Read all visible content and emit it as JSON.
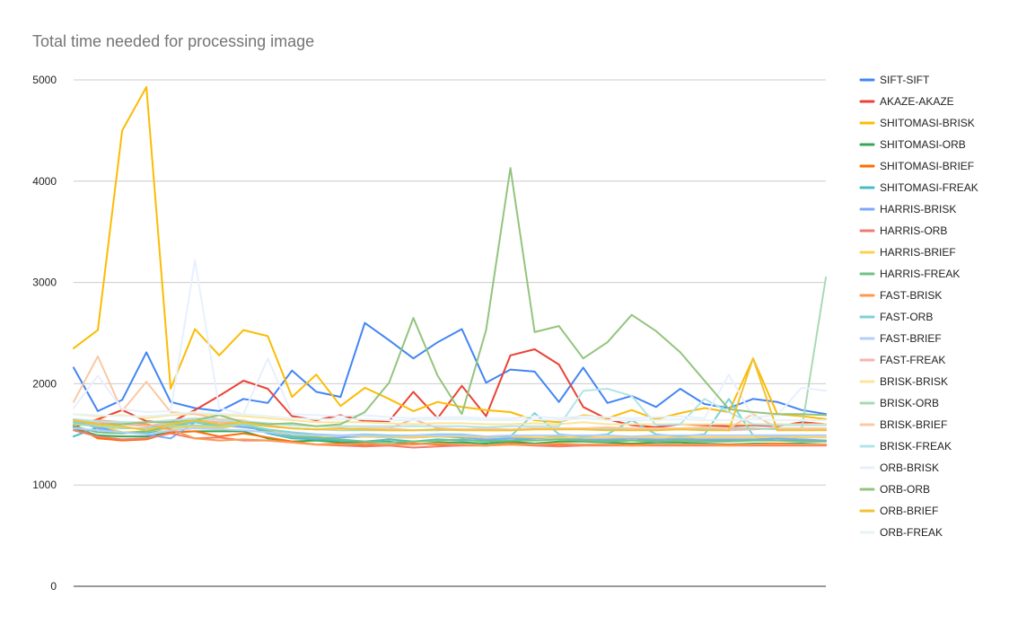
{
  "chart_data": {
    "type": "line",
    "title": "Total time needed for processing image",
    "xlabel": "",
    "ylabel": "",
    "ylim": [
      0,
      5000
    ],
    "yticks": [
      0,
      1000,
      2000,
      3000,
      4000,
      5000
    ],
    "grid": true,
    "legend": "right",
    "x": [
      1,
      2,
      3,
      4,
      5,
      6,
      7,
      8,
      9,
      10,
      11,
      12,
      13,
      14,
      15,
      16,
      17,
      18,
      19,
      20,
      21,
      22,
      23,
      24,
      25,
      26,
      27,
      28,
      29,
      30,
      31,
      32
    ],
    "series": [
      {
        "name": "SIFT-SIFT",
        "color": "#4285F4",
        "values": [
          2160,
          1730,
          1840,
          2310,
          1820,
          1760,
          1730,
          1850,
          1810,
          2130,
          1920,
          1870,
          2600,
          2430,
          2250,
          2410,
          2540,
          2010,
          2140,
          2120,
          1820,
          2160,
          1810,
          1880,
          1770,
          1950,
          1800,
          1760,
          1850,
          1820,
          1740,
          1700
        ]
      },
      {
        "name": "AKAZE-AKAZE",
        "color": "#EA4335",
        "values": [
          1570,
          1650,
          1740,
          1630,
          1620,
          1740,
          1880,
          2030,
          1950,
          1680,
          1640,
          1690,
          1630,
          1630,
          1920,
          1660,
          1980,
          1680,
          2280,
          2340,
          2190,
          1770,
          1650,
          1590,
          1570,
          1600,
          1590,
          1580,
          1590,
          1580,
          1620,
          1600
        ]
      },
      {
        "name": "SHITOMASI-BRISK",
        "color": "#FBBC04",
        "values": [
          2350,
          2530,
          4500,
          4930,
          1950,
          2540,
          2280,
          2530,
          2470,
          1870,
          2090,
          1780,
          1960,
          1850,
          1730,
          1820,
          1770,
          1740,
          1720,
          1640,
          1620,
          1690,
          1660,
          1740,
          1650,
          1710,
          1760,
          1720,
          2250,
          1700,
          1680,
          1650
        ]
      },
      {
        "name": "SHITOMASI-ORB",
        "color": "#34A853",
        "values": [
          1560,
          1490,
          1480,
          1480,
          1520,
          1530,
          1530,
          1530,
          1460,
          1430,
          1440,
          1420,
          1420,
          1430,
          1400,
          1420,
          1420,
          1410,
          1430,
          1410,
          1430,
          1430,
          1420,
          1410,
          1420,
          1420,
          1410,
          1400,
          1410,
          1410,
          1410,
          1400
        ]
      },
      {
        "name": "SHITOMASI-BRIEF",
        "color": "#FF6D01",
        "values": [
          1590,
          1460,
          1440,
          1450,
          1520,
          1530,
          1480,
          1510,
          1470,
          1430,
          1400,
          1410,
          1390,
          1400,
          1410,
          1400,
          1400,
          1390,
          1410,
          1400,
          1400,
          1400,
          1400,
          1400,
          1400,
          1400,
          1400,
          1400,
          1400,
          1410,
          1400,
          1400
        ]
      },
      {
        "name": "SHITOMASI-FREAK",
        "color": "#46BDC6",
        "values": [
          1480,
          1570,
          1520,
          1510,
          1570,
          1640,
          1560,
          1600,
          1510,
          1460,
          1450,
          1440,
          1430,
          1450,
          1430,
          1450,
          1440,
          1440,
          1440,
          1460,
          1480,
          1450,
          1440,
          1460,
          1440,
          1470,
          1440,
          1440,
          1440,
          1440,
          1440,
          1440
        ]
      },
      {
        "name": "HARRIS-BRISK",
        "color": "#7BAAF7",
        "values": [
          1640,
          1560,
          1520,
          1500,
          1460,
          1620,
          1590,
          1570,
          1540,
          1480,
          1460,
          1470,
          1480,
          1470,
          1470,
          1480,
          1470,
          1450,
          1460,
          1460,
          1470,
          1450,
          1450,
          1460,
          1450,
          1450,
          1450,
          1450,
          1450,
          1460,
          1450,
          1440
        ]
      },
      {
        "name": "HARRIS-ORB",
        "color": "#F07B72",
        "values": [
          1540,
          1480,
          1450,
          1460,
          1510,
          1460,
          1470,
          1440,
          1440,
          1420,
          1400,
          1390,
          1380,
          1390,
          1370,
          1380,
          1390,
          1390,
          1400,
          1390,
          1380,
          1390,
          1390,
          1390,
          1390,
          1390,
          1390,
          1390,
          1390,
          1390,
          1390,
          1390
        ]
      },
      {
        "name": "HARRIS-BRIEF",
        "color": "#FCD04F",
        "values": [
          1620,
          1600,
          1520,
          1530,
          1560,
          1580,
          1560,
          1600,
          1540,
          1500,
          1480,
          1490,
          1480,
          1470,
          1470,
          1480,
          1480,
          1470,
          1480,
          1470,
          1470,
          1470,
          1470,
          1470,
          1470,
          1470,
          1470,
          1470,
          1470,
          1480,
          1470,
          1470
        ]
      },
      {
        "name": "HARRIS-FREAK",
        "color": "#71C287",
        "values": [
          1580,
          1520,
          1510,
          1530,
          1580,
          1620,
          1580,
          1600,
          1530,
          1480,
          1470,
          1450,
          1430,
          1420,
          1430,
          1440,
          1450,
          1430,
          1440,
          1440,
          1450,
          1440,
          1430,
          1440,
          1430,
          1440,
          1430,
          1430,
          1440,
          1440,
          1430,
          1430
        ]
      },
      {
        "name": "FAST-BRISK",
        "color": "#FF994D",
        "values": [
          1600,
          1640,
          1620,
          1600,
          1550,
          1460,
          1440,
          1450,
          1440,
          1420,
          1400,
          1400,
          1410,
          1400,
          1400,
          1410,
          1400,
          1390,
          1400,
          1400,
          1410,
          1400,
          1400,
          1390,
          1400,
          1400,
          1400,
          1390,
          1400,
          1400,
          1400,
          1400
        ]
      },
      {
        "name": "FAST-ORB",
        "color": "#7ED1D7",
        "values": [
          1620,
          1580,
          1560,
          1560,
          1600,
          1620,
          1600,
          1590,
          1550,
          1520,
          1500,
          1490,
          1500,
          1490,
          1490,
          1500,
          1500,
          1480,
          1480,
          1710,
          1500,
          1480,
          1500,
          1640,
          1500,
          1480,
          1500,
          1850,
          1490,
          1490,
          1490,
          1490
        ]
      },
      {
        "name": "FAST-BRIEF",
        "color": "#B3CEFB",
        "values": [
          1560,
          1540,
          1520,
          1500,
          1540,
          1560,
          1550,
          1540,
          1520,
          1500,
          1490,
          1490,
          1490,
          1480,
          1490,
          1490,
          1490,
          1480,
          1490,
          1490,
          1490,
          1490,
          1490,
          1480,
          1490,
          1490,
          1490,
          1490,
          1490,
          1490,
          1490,
          1490
        ]
      },
      {
        "name": "FAST-FREAK",
        "color": "#F7B4AE",
        "values": [
          1640,
          1620,
          1600,
          1580,
          1620,
          1640,
          1620,
          1620,
          1590,
          1560,
          1550,
          1550,
          1560,
          1560,
          1650,
          1560,
          1550,
          1540,
          1540,
          1560,
          1550,
          1560,
          1550,
          1550,
          1540,
          1560,
          1550,
          1540,
          1550,
          1560,
          1560,
          1550
        ]
      },
      {
        "name": "BRISK-BRISK",
        "color": "#FDE49B",
        "values": [
          1700,
          1680,
          1690,
          1660,
          1690,
          1700,
          1690,
          1680,
          1660,
          1640,
          1620,
          1620,
          1620,
          1610,
          1600,
          1610,
          1610,
          1600,
          1600,
          1610,
          1600,
          1620,
          1600,
          1600,
          1600,
          1600,
          1600,
          1600,
          1600,
          1600,
          1600,
          1600
        ]
      },
      {
        "name": "BRISK-ORB",
        "color": "#A8DAB5",
        "values": [
          1600,
          1580,
          1560,
          1560,
          1580,
          1590,
          1580,
          1600,
          1580,
          1560,
          1550,
          1540,
          1540,
          1540,
          1540,
          1540,
          1550,
          1540,
          1540,
          1560,
          1560,
          1550,
          1550,
          1560,
          1550,
          1560,
          1560,
          1560,
          1560,
          1550,
          1550,
          3050
        ]
      },
      {
        "name": "BRISK-BRIEF",
        "color": "#FBC8A4",
        "values": [
          1820,
          2270,
          1730,
          2020,
          1720,
          1700,
          1650,
          1640,
          1580,
          1560,
          1550,
          1550,
          1560,
          1560,
          1540,
          1550,
          1550,
          1560,
          1550,
          1560,
          1560,
          1560,
          1570,
          1560,
          1560,
          1560,
          1570,
          1560,
          1700,
          1560,
          1560,
          1560
        ]
      },
      {
        "name": "BRISK-FREAK",
        "color": "#B2E4E8",
        "values": [
          1650,
          1630,
          1620,
          1620,
          1640,
          1660,
          1640,
          1630,
          1610,
          1590,
          1580,
          1580,
          1580,
          1580,
          1580,
          1580,
          1580,
          1570,
          1580,
          1580,
          1580,
          1930,
          1950,
          1880,
          1590,
          1600,
          1850,
          1720,
          1600,
          1590,
          1590,
          1590
        ]
      },
      {
        "name": "ORB-BRISK",
        "color": "#E8F0FE",
        "values": [
          1760,
          2080,
          1750,
          1720,
          1730,
          3220,
          1760,
          1700,
          2250,
          1700,
          1690,
          1680,
          1690,
          1670,
          1660,
          1670,
          1670,
          1660,
          1660,
          1680,
          1660,
          1680,
          1670,
          1660,
          1670,
          1680,
          1660,
          2090,
          1670,
          1690,
          1960,
          1930
        ]
      },
      {
        "name": "ORB-ORB",
        "color": "#93C47D",
        "values": [
          1640,
          1600,
          1600,
          1620,
          1620,
          1640,
          1690,
          1620,
          1600,
          1610,
          1580,
          1600,
          1720,
          2010,
          2650,
          2080,
          1700,
          2530,
          4130,
          2510,
          2570,
          2250,
          2410,
          2680,
          2520,
          2310,
          2030,
          1750,
          1720,
          1700,
          1700,
          1690
        ]
      },
      {
        "name": "ORB-BRIEF",
        "color": "#F1C232",
        "values": [
          1640,
          1600,
          1580,
          1540,
          1600,
          1640,
          1600,
          1620,
          1580,
          1560,
          1550,
          1560,
          1550,
          1540,
          1540,
          1550,
          1540,
          1540,
          1540,
          1550,
          1550,
          1550,
          1540,
          1540,
          1540,
          1550,
          1540,
          1540,
          2250,
          1540,
          1540,
          1540
        ]
      },
      {
        "name": "ORB-FREAK",
        "color": "#E6F4F6",
        "values": [
          1700,
          1690,
          1680,
          1680,
          1700,
          1720,
          1700,
          1700,
          1680,
          1660,
          1650,
          1650,
          1650,
          1640,
          1640,
          1650,
          1650,
          1640,
          1640,
          1650,
          1640,
          1660,
          1640,
          1640,
          1640,
          1650,
          1640,
          1640,
          1650,
          1640,
          1640,
          1640
        ]
      }
    ]
  }
}
